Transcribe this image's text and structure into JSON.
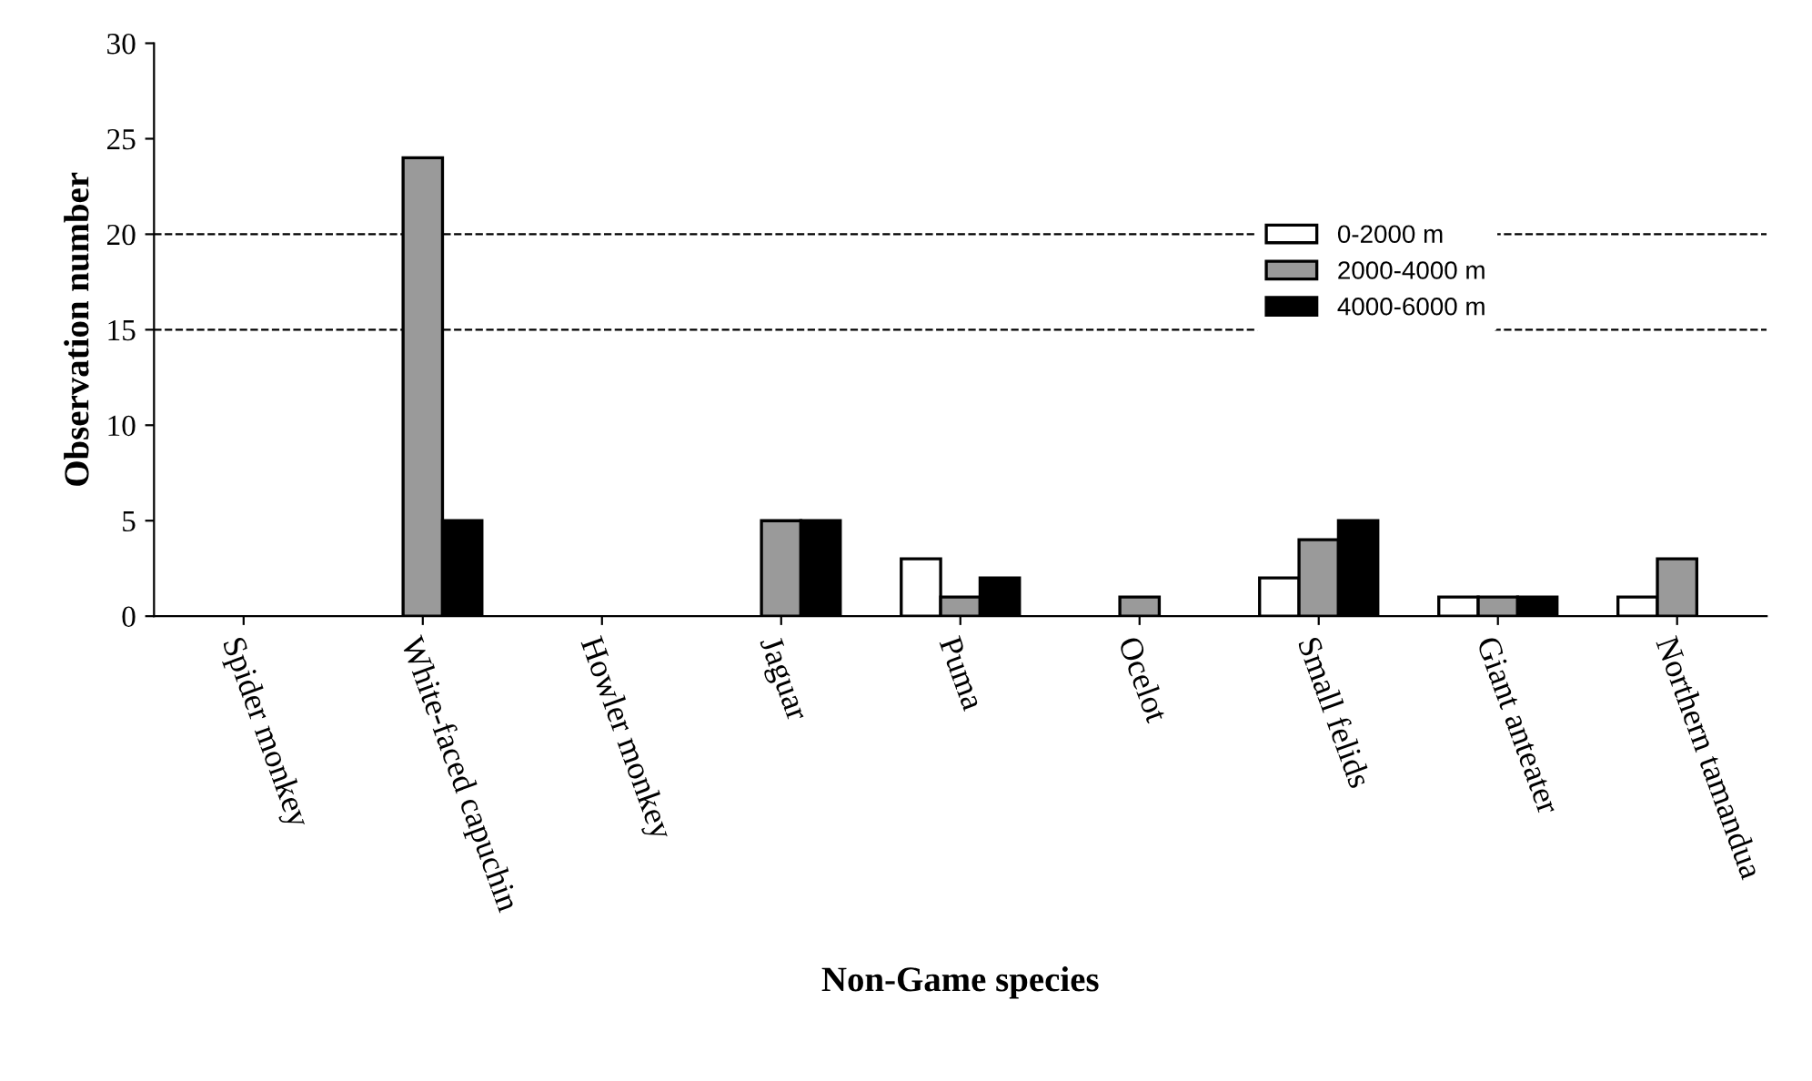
{
  "chart_data": {
    "type": "bar",
    "xlabel": "Non-Game species",
    "ylabel": "Observation number",
    "categories": [
      "Spider monkey",
      "White-faced capuchin",
      "Howler monkey",
      "Jaguar",
      "Puma",
      "Ocelot",
      "Small felids",
      "Giant anteater",
      "Northern tamandua"
    ],
    "series": [
      {
        "name": "0-2000 m",
        "color": "#ffffff",
        "values": [
          0,
          0,
          0,
          0,
          3,
          0,
          2,
          1,
          1
        ]
      },
      {
        "name": "2000-4000 m",
        "color": "#9a9a9a",
        "values": [
          0,
          24,
          0,
          5,
          1,
          1,
          4,
          1,
          3
        ]
      },
      {
        "name": "4000-6000 m",
        "color": "#000000",
        "values": [
          0,
          5,
          0,
          5,
          2,
          0,
          5,
          1,
          0
        ]
      }
    ],
    "ylim": [
      0,
      30
    ],
    "yticks": [
      0,
      5,
      10,
      15,
      20,
      25,
      30
    ],
    "ref_lines": [
      {
        "axis": "y",
        "value": 15,
        "line_style": "dashed",
        "color": "#000000"
      },
      {
        "axis": "y",
        "value": 20,
        "line_style": "dashed",
        "color": "#000000"
      }
    ],
    "legend": "right"
  }
}
